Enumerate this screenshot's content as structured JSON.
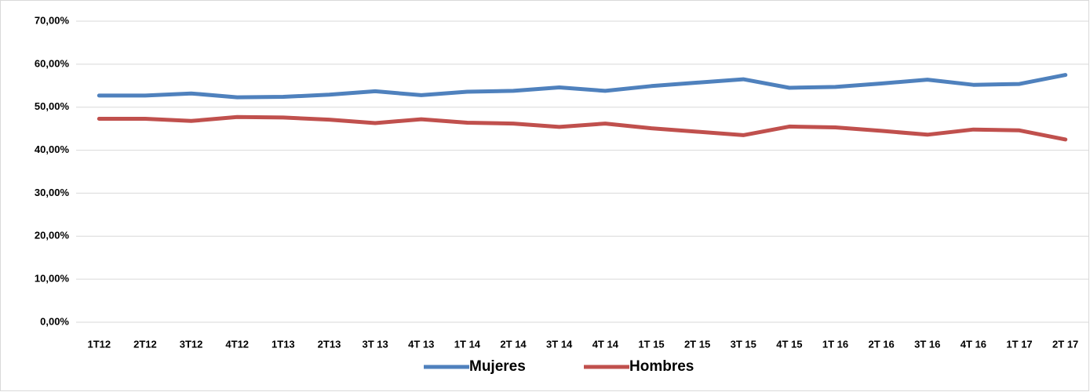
{
  "chart_data": {
    "type": "line",
    "categories": [
      "1T12",
      "2T12",
      "3T12",
      "4T12",
      "1T13",
      "2T13",
      "3T 13",
      "4T 13",
      "1T 14",
      "2T 14",
      "3T 14",
      "4T 14",
      "1T 15",
      "2T 15",
      "3T 15",
      "4T 15",
      "1T 16",
      "2T 16",
      "3T 16",
      "4T 16",
      "1T 17",
      "2T 17"
    ],
    "series": [
      {
        "name": "Mujeres",
        "color": "#4f81bd",
        "values": [
          52.7,
          52.7,
          53.2,
          52.3,
          52.4,
          52.9,
          53.7,
          52.8,
          53.6,
          53.8,
          54.6,
          53.8,
          54.9,
          55.7,
          56.5,
          54.5,
          54.7,
          55.5,
          56.4,
          55.2,
          55.4,
          57.5
        ]
      },
      {
        "name": "Hombres",
        "color": "#c0504d",
        "values": [
          47.3,
          47.3,
          46.8,
          47.7,
          47.6,
          47.1,
          46.3,
          47.2,
          46.4,
          46.2,
          45.4,
          46.2,
          45.1,
          44.3,
          43.5,
          45.5,
          45.3,
          44.5,
          43.6,
          44.8,
          44.6,
          42.5
        ]
      }
    ],
    "ylim": [
      0,
      70
    ],
    "yticks": [
      {
        "value": 0,
        "label": "0,00%"
      },
      {
        "value": 10,
        "label": "10,00%"
      },
      {
        "value": 20,
        "label": "20,00%"
      },
      {
        "value": 30,
        "label": "30,00%"
      },
      {
        "value": 40,
        "label": "40,00%"
      },
      {
        "value": 50,
        "label": "50,00%"
      },
      {
        "value": 60,
        "label": "60,00%"
      },
      {
        "value": 70,
        "label": "70,00%"
      }
    ],
    "grid": true,
    "legend": "bottom"
  }
}
